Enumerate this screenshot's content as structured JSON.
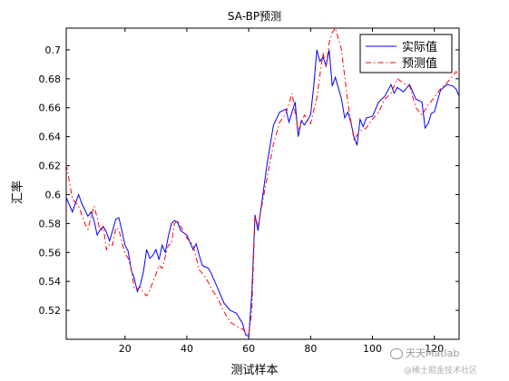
{
  "chart_data": {
    "type": "line",
    "title": "SA-BP预测",
    "xlabel": "测试样本",
    "ylabel": "汇率",
    "xlim": [
      1,
      128
    ],
    "ylim": [
      0.5,
      0.715
    ],
    "xticks": [
      20,
      40,
      60,
      80,
      100,
      120
    ],
    "yticks": [
      0.52,
      0.54,
      0.56,
      0.58,
      0.6,
      0.62,
      0.64,
      0.66,
      0.68,
      0.7
    ],
    "xtick_labels": [
      "20",
      "40",
      "60",
      "80",
      "100",
      "120"
    ],
    "ytick_labels": [
      "0.52",
      "0.54",
      "0.56",
      "0.58",
      "0.6",
      "0.62",
      "0.64",
      "0.66",
      "0.68",
      "0.7"
    ],
    "grid": false,
    "legend_position": "top-right",
    "series": [
      {
        "name": "实际值",
        "color": "#0000ff",
        "style": "solid",
        "x": [
          1,
          3,
          5,
          6,
          8,
          9,
          10,
          11,
          12,
          13,
          14,
          15,
          16,
          17,
          18,
          19,
          20,
          21,
          22,
          23,
          24,
          25,
          26,
          27,
          28,
          29,
          30,
          31,
          32,
          33,
          34,
          35,
          36,
          37,
          38,
          40,
          42,
          43,
          44,
          45,
          47,
          48,
          50,
          52,
          54,
          56,
          58,
          59,
          60,
          61,
          62,
          63,
          64,
          66,
          68,
          70,
          72,
          73,
          74,
          75,
          76,
          77,
          78,
          80,
          81,
          82,
          83,
          84,
          85,
          86,
          87,
          88,
          90,
          91,
          92,
          93,
          94,
          95,
          96,
          97,
          98,
          100,
          102,
          104,
          106,
          107,
          108,
          110,
          112,
          114,
          116,
          117,
          118,
          119,
          120,
          122,
          124,
          126,
          127,
          128
        ],
        "y": [
          0.598,
          0.588,
          0.6,
          0.594,
          0.585,
          0.588,
          0.582,
          0.572,
          0.576,
          0.578,
          0.574,
          0.568,
          0.575,
          0.583,
          0.584,
          0.575,
          0.565,
          0.561,
          0.548,
          0.542,
          0.533,
          0.538,
          0.547,
          0.562,
          0.556,
          0.558,
          0.562,
          0.555,
          0.565,
          0.56,
          0.571,
          0.58,
          0.582,
          0.581,
          0.575,
          0.572,
          0.562,
          0.566,
          0.558,
          0.551,
          0.549,
          0.545,
          0.535,
          0.525,
          0.52,
          0.518,
          0.511,
          0.503,
          0.502,
          0.532,
          0.586,
          0.575,
          0.591,
          0.622,
          0.648,
          0.657,
          0.659,
          0.65,
          0.657,
          0.664,
          0.64,
          0.651,
          0.648,
          0.655,
          0.675,
          0.7,
          0.692,
          0.695,
          0.689,
          0.7,
          0.675,
          0.681,
          0.666,
          0.653,
          0.657,
          0.65,
          0.64,
          0.634,
          0.652,
          0.647,
          0.653,
          0.654,
          0.664,
          0.668,
          0.676,
          0.67,
          0.674,
          0.671,
          0.676,
          0.666,
          0.664,
          0.646,
          0.649,
          0.656,
          0.657,
          0.672,
          0.676,
          0.675,
          0.673,
          0.668
        ]
      },
      {
        "name": "预测值",
        "color": "#ff0000",
        "style": "dashdot",
        "x": [
          1,
          3,
          5,
          7,
          8,
          10,
          11,
          12,
          13,
          14,
          15,
          16,
          17,
          18,
          19,
          20,
          21,
          22,
          23,
          24,
          25,
          26,
          27,
          28,
          30,
          31,
          32,
          34,
          35,
          36,
          37,
          38,
          40,
          42,
          44,
          46,
          48,
          50,
          52,
          54,
          56,
          58,
          60,
          61,
          62,
          63,
          64,
          66,
          68,
          70,
          72,
          74,
          76,
          78,
          80,
          82,
          84,
          85,
          86,
          87,
          88,
          90,
          92,
          94,
          96,
          98,
          100,
          102,
          104,
          106,
          108,
          110,
          112,
          114,
          116,
          118,
          120,
          122,
          124,
          126,
          127,
          128
        ],
        "y": [
          0.621,
          0.597,
          0.592,
          0.58,
          0.576,
          0.592,
          0.584,
          0.574,
          0.578,
          0.562,
          0.566,
          0.565,
          0.577,
          0.576,
          0.567,
          0.559,
          0.556,
          0.549,
          0.535,
          0.535,
          0.536,
          0.532,
          0.53,
          0.534,
          0.545,
          0.551,
          0.549,
          0.565,
          0.566,
          0.58,
          0.582,
          0.578,
          0.57,
          0.565,
          0.548,
          0.543,
          0.535,
          0.528,
          0.519,
          0.512,
          0.509,
          0.507,
          0.503,
          0.52,
          0.585,
          0.578,
          0.59,
          0.612,
          0.635,
          0.65,
          0.656,
          0.67,
          0.644,
          0.655,
          0.649,
          0.667,
          0.698,
          0.688,
          0.705,
          0.712,
          0.715,
          0.7,
          0.664,
          0.638,
          0.644,
          0.646,
          0.652,
          0.657,
          0.666,
          0.67,
          0.68,
          0.677,
          0.675,
          0.66,
          0.655,
          0.662,
          0.667,
          0.673,
          0.677,
          0.682,
          0.685,
          0.682
        ]
      }
    ]
  },
  "watermark": {
    "line1": "天天Matlab",
    "line2": "@稀土掘金技术社区"
  }
}
